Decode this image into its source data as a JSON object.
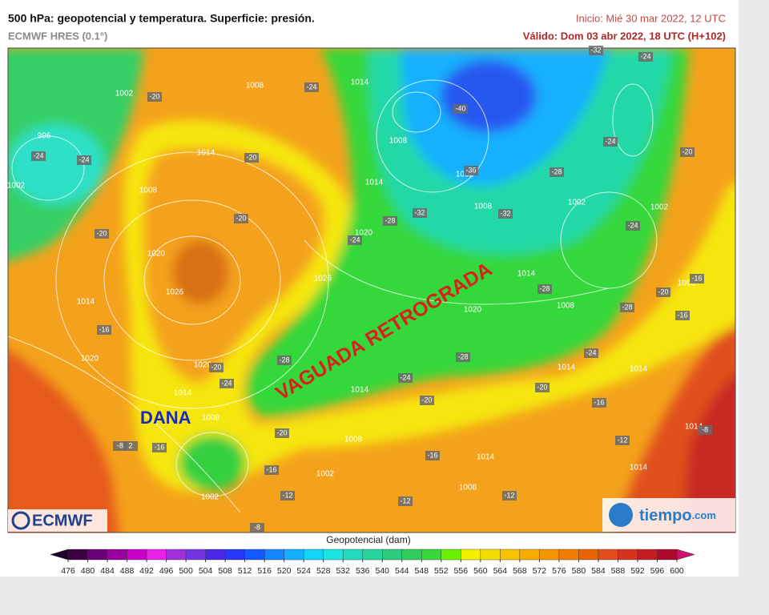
{
  "header": {
    "title": "500 hPa: geopotencial y temperatura. Superficie: presión.",
    "model": "ECMWF HRES (0.1°)",
    "init": "Inicio: Mié 30 mar 2022, 12 UTC",
    "valid": "Válido: Dom 03 abr 2022, 18 UTC (H+102)"
  },
  "annotations": [
    "VAGUADA RETROGRADA",
    "DANA"
  ],
  "isobar_labels": [
    "1002",
    "996",
    "1002",
    "1008",
    "1014",
    "1014",
    "1008",
    "1020",
    "1026",
    "1014",
    "1020",
    "1020",
    "1014",
    "1008",
    "1026",
    "1020",
    "1014",
    "1008",
    "1002",
    "1008",
    "1002",
    "1002",
    "1014",
    "1008",
    "1020",
    "1014",
    "1014",
    "1014",
    "1008",
    "1002",
    "1002",
    "1014",
    "1008",
    "1014",
    "1014",
    "1008"
  ],
  "temperature_labels": [
    "-24",
    "-24",
    "-20",
    "-24",
    "-20",
    "-20",
    "-20",
    "-16",
    "-20",
    "-24",
    "-24",
    "-28",
    "-32",
    "-40",
    "-36",
    "-32",
    "-28",
    "-24",
    "-20",
    "-24",
    "-32",
    "-24",
    "-28",
    "-28",
    "-20",
    "-16",
    "-16",
    "-24",
    "-28",
    "-28",
    "-24",
    "-20",
    "-20",
    "-16",
    "-20",
    "-16",
    "-8",
    "2",
    "-16",
    "-12",
    "-16",
    "-12",
    "-12",
    "-12",
    "-8",
    "-8"
  ],
  "logos": {
    "left": "ECMWF",
    "right": "tiempo",
    "right_suffix": ".com"
  },
  "colorbar": {
    "title": "Geopotencial (dam)",
    "ticks": [
      476,
      480,
      484,
      488,
      492,
      496,
      500,
      504,
      508,
      512,
      516,
      520,
      524,
      528,
      532,
      536,
      540,
      544,
      548,
      552,
      556,
      560,
      564,
      568,
      572,
      576,
      580,
      584,
      588,
      592,
      596,
      600
    ],
    "colors": [
      "#3a0040",
      "#6a0078",
      "#9a009e",
      "#c800c8",
      "#e820e8",
      "#a030d8",
      "#7434e4",
      "#4a28e8",
      "#2838f8",
      "#1458ff",
      "#1484ff",
      "#10b0ff",
      "#10d4f8",
      "#1ee4e0",
      "#22dcbc",
      "#26d49c",
      "#2ccc7c",
      "#30cc5c",
      "#36d83a",
      "#6cf000",
      "#f4f000",
      "#f4dc00",
      "#f8c400",
      "#f8ac00",
      "#f49400",
      "#f07c00",
      "#e86400",
      "#e04c1c",
      "#d43420",
      "#c41c22",
      "#b0082c"
    ],
    "under_color": "#200028",
    "over_color": "#d0106a"
  }
}
